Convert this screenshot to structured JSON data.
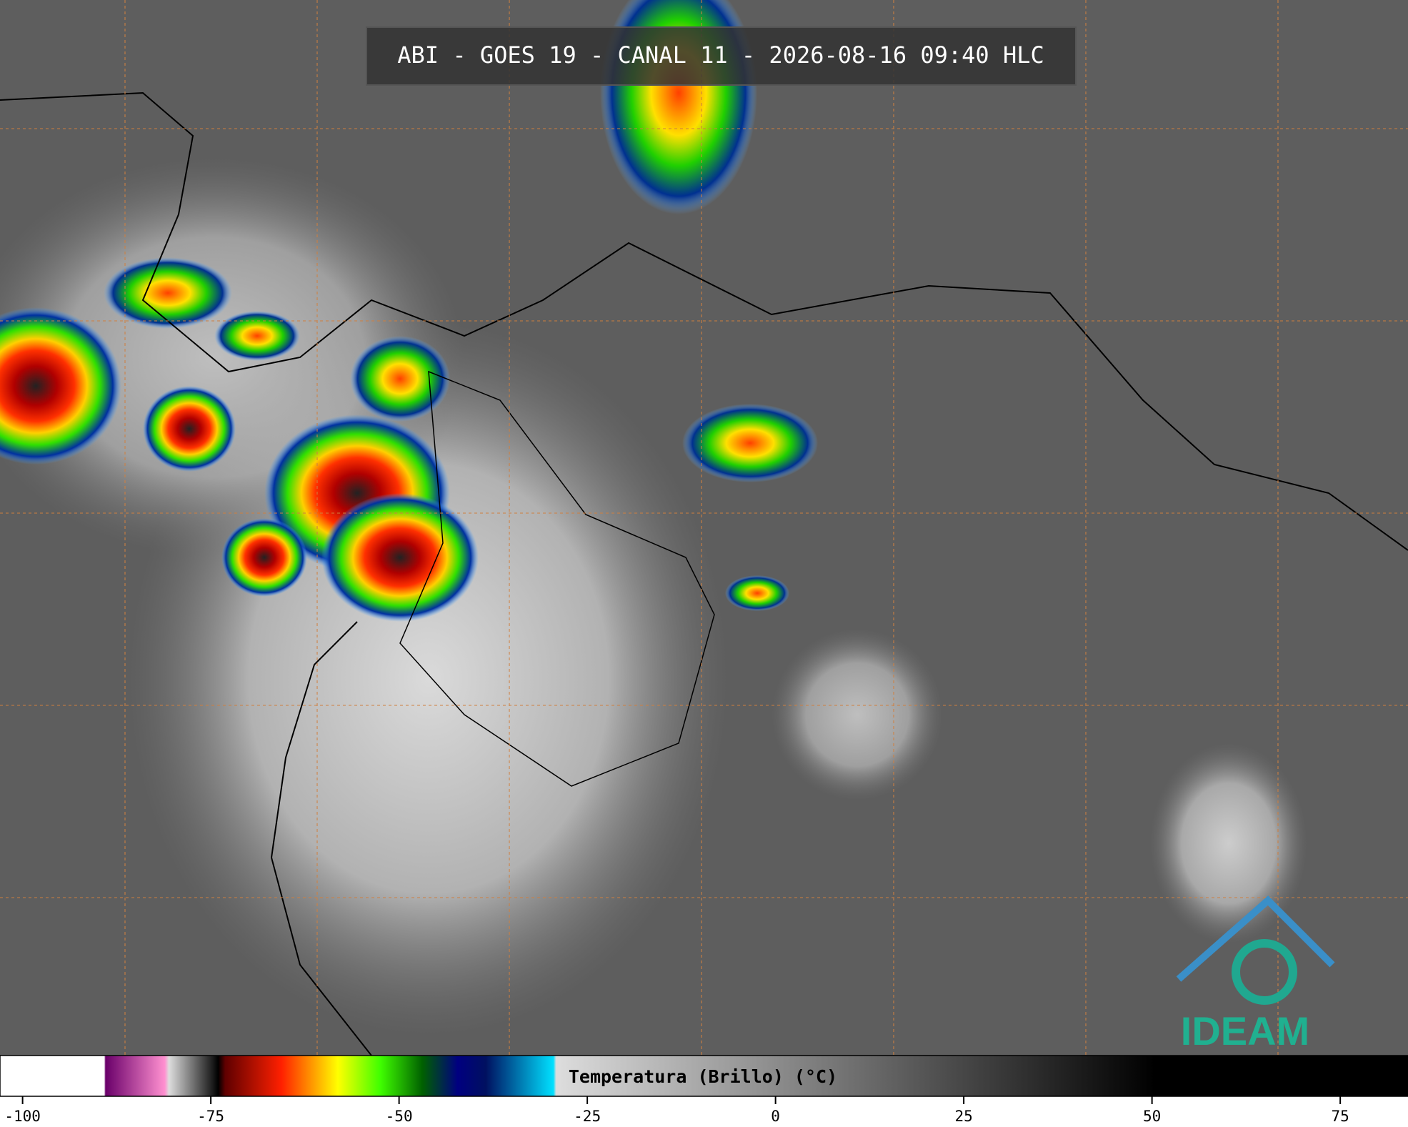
{
  "title": "ABI - GOES 19 - CANAL 11 - 2026-08-16 09:40 HLC",
  "colorbar": {
    "label": "Temperatura (Brillo) (°C)",
    "lim": [
      -103,
      84
    ],
    "ticks": [
      -100,
      -75,
      -50,
      -25,
      0,
      25,
      50,
      75
    ]
  },
  "logo": "IDEAM"
}
